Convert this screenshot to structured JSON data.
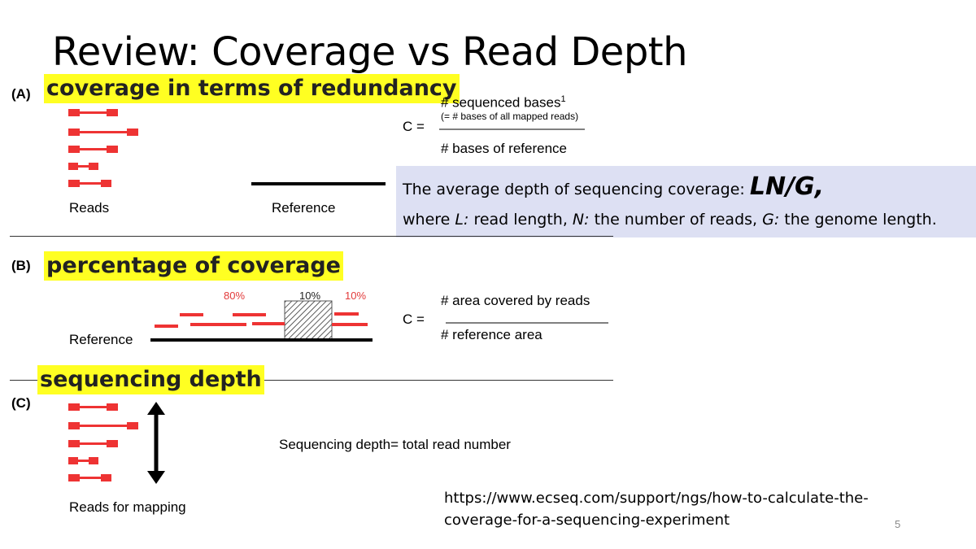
{
  "title": "Review: Coverage vs Read Depth",
  "sectionA": {
    "letter": "(A)",
    "heading": "coverage in terms of redundancy",
    "reads_label": "Reads",
    "reference_label": "Reference",
    "formula": {
      "lhs": "C =",
      "numerator": "# sequenced bases",
      "numerator_sup": "1",
      "numerator_note": "(= # bases of all mapped reads)",
      "denominator": "# bases of reference"
    }
  },
  "infobox": {
    "line1_prefix": "The average depth of sequencing coverage: ",
    "line1_formula": "LN/G,",
    "where": "where ",
    "L": "L:",
    "L_desc": " read length, ",
    "N": "N:",
    "N_desc": " the number of reads, ",
    "G": "G:",
    "G_desc": " the genome length."
  },
  "sectionB": {
    "letter": "(B)",
    "heading": "percentage of coverage",
    "reference_label": "Reference",
    "pct_left": "80%",
    "pct_mid": "10%",
    "pct_right": "10%",
    "formula": {
      "lhs": "C =",
      "numerator": "# area covered by reads",
      "denominator": "# reference area"
    }
  },
  "sectionC": {
    "letter": "(C)",
    "heading": "sequencing depth",
    "reads_label": "Reads for mapping",
    "depth_text": "Sequencing depth= total read number"
  },
  "url": {
    "line1": "https://www.ecseq.com/support/ngs/how-to-calculate-the-",
    "line2": "coverage-for-a-sequencing-experiment"
  },
  "page_number": "5",
  "colors": {
    "read": "#ee3333",
    "highlight": "#ffff22",
    "infobox": "#dde0f3"
  }
}
